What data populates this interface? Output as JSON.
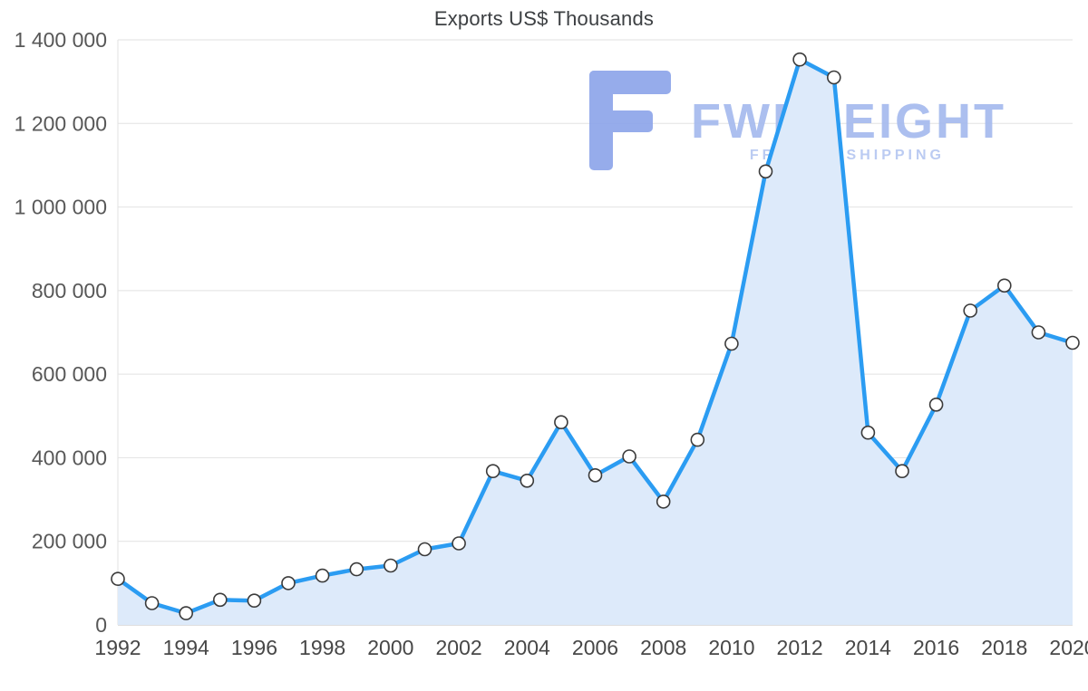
{
  "chart_data": {
    "type": "area",
    "title": "Exports US$ Thousands",
    "xlabel": "",
    "ylabel": "",
    "x": [
      1992,
      1993,
      1994,
      1995,
      1996,
      1997,
      1998,
      1999,
      2000,
      2001,
      2002,
      2003,
      2004,
      2005,
      2006,
      2007,
      2008,
      2009,
      2010,
      2011,
      2012,
      2013,
      2014,
      2015,
      2016,
      2017,
      2018,
      2019,
      2020
    ],
    "values": [
      110000,
      52000,
      28000,
      60000,
      58000,
      100000,
      118000,
      133000,
      142000,
      181000,
      195000,
      368000,
      345000,
      485000,
      358000,
      403000,
      295000,
      443000,
      673000,
      1085000,
      1353000,
      1310000,
      460000,
      368000,
      527000,
      752000,
      812000,
      700000,
      675000
    ],
    "ylim": [
      0,
      1400000
    ],
    "ytick_step": 200000,
    "xtick_step": 2,
    "grid": true,
    "legend": "none",
    "line_color": "#2b9cf2",
    "fill_color": "#ddeafa",
    "marker_fill": "#ffffff",
    "marker_stroke": "#3b3b3b",
    "grid_color": "#e2e2e2",
    "axis_color": "#bdbdbd",
    "ytick_color": "#585858",
    "xtick_color": "#474747",
    "title_color": "#3d4043"
  },
  "watermark": {
    "brand": "FWFREIGHT",
    "subtitle": "FREIGHT SHIPPING",
    "logo_color": "#8ea6ea",
    "brand_color": "#a5baee",
    "subtitle_color": "#b6c7f1"
  }
}
